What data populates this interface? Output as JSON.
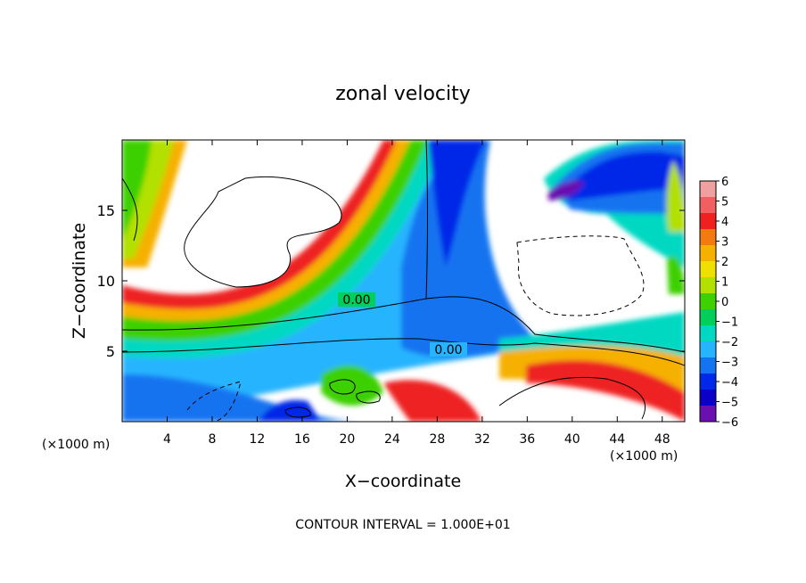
{
  "chart_data": {
    "type": "heatmap",
    "title": "zonal velocity",
    "xlabel": "X−coordinate",
    "ylabel": "Z−coordinate",
    "x_unit_left": "(×1000 m)",
    "x_unit_right": "(×1000 m)",
    "footer": "CONTOUR INTERVAL = 1.000E+01",
    "xlim": [
      0,
      50
    ],
    "ylim": [
      0,
      20
    ],
    "xticks": [
      4,
      8,
      12,
      16,
      20,
      24,
      28,
      32,
      36,
      40,
      44,
      48
    ],
    "yticks": [
      5,
      10,
      15
    ],
    "colorbar": {
      "ticks": [
        6,
        5,
        4,
        3,
        2,
        1,
        0,
        -1,
        -2,
        -3,
        -4,
        -5,
        -6
      ],
      "tick_labels": [
        "6",
        "5",
        "4",
        "3",
        "2",
        "1",
        "0",
        "−1",
        "−2",
        "−3",
        "−4",
        "−5",
        "−6"
      ],
      "colors": [
        "#f0a0a0",
        "#f06060",
        "#ee2020",
        "#f37a10",
        "#f6b000",
        "#f0e000",
        "#b2e000",
        "#3ed000",
        "#00cf5a",
        "#00d8c2",
        "#26b4ff",
        "#1473f0",
        "#0028e8",
        "#0a00c8",
        "#6a10b0"
      ]
    },
    "contour_labels": [
      "0.00",
      "0.00"
    ]
  }
}
